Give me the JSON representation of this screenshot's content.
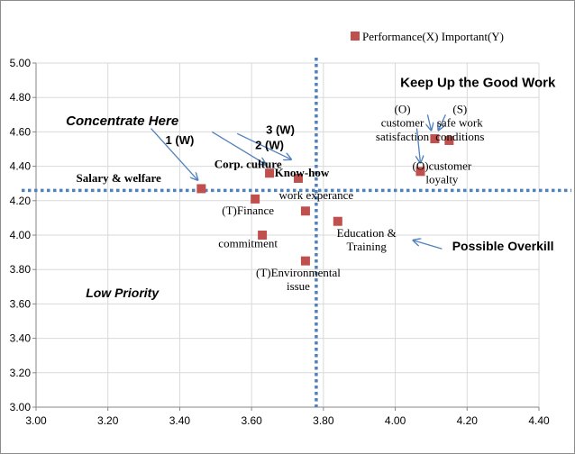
{
  "chart_data": {
    "type": "scatter",
    "xlim": [
      3.0,
      4.4
    ],
    "ylim": [
      3.0,
      5.0
    ],
    "x_ticks": [
      "3.00",
      "3.20",
      "3.40",
      "3.60",
      "3.80",
      "4.00",
      "4.20",
      "4.40"
    ],
    "y_ticks": [
      "3.00",
      "3.20",
      "3.40",
      "3.60",
      "3.80",
      "4.00",
      "4.20",
      "4.40",
      "4.60",
      "4.80",
      "5.00"
    ],
    "grid": true,
    "legend": {
      "label": "Performance(X) Important(Y)",
      "position": "top-right"
    },
    "marker_color": "#c0504d",
    "divider_color": "#4f81bd",
    "dividers": {
      "x": 3.78,
      "y": 4.26
    },
    "points": [
      {
        "x": 3.46,
        "y": 4.27
      },
      {
        "x": 3.65,
        "y": 4.36
      },
      {
        "x": 3.73,
        "y": 4.33
      },
      {
        "x": 3.61,
        "y": 4.21
      },
      {
        "x": 3.75,
        "y": 4.14
      },
      {
        "x": 3.63,
        "y": 4.0
      },
      {
        "x": 3.84,
        "y": 4.08
      },
      {
        "x": 3.75,
        "y": 3.85
      },
      {
        "x": 4.11,
        "y": 4.56
      },
      {
        "x": 4.15,
        "y": 4.55
      },
      {
        "x": 4.07,
        "y": 4.37
      }
    ],
    "point_labels": [
      {
        "text": "Salary  & welfare",
        "x": 3.23,
        "y": 4.31,
        "bold": true
      },
      {
        "text": "Corp. culture",
        "x": 3.59,
        "y": 4.39,
        "bold": true
      },
      {
        "text": "Know-how",
        "x": 3.74,
        "y": 4.34,
        "bold": true
      },
      {
        "text": "work experance",
        "x": 3.78,
        "y": 4.21
      },
      {
        "text": "(T)Finance",
        "x": 3.59,
        "y": 4.12
      },
      {
        "text": "commitment",
        "x": 3.59,
        "y": 3.93
      },
      {
        "text": "Education &",
        "x": 3.92,
        "y": 3.99
      },
      {
        "text": "Training",
        "x": 3.92,
        "y": 3.91
      },
      {
        "text": "(T)Environmental",
        "x": 3.73,
        "y": 3.76
      },
      {
        "text": "issue",
        "x": 3.73,
        "y": 3.68
      },
      {
        "text": "(O)",
        "x": 4.02,
        "y": 4.71
      },
      {
        "text": "customer",
        "x": 4.02,
        "y": 4.63
      },
      {
        "text": "satisfaction",
        "x": 4.02,
        "y": 4.55
      },
      {
        "text": "(S)",
        "x": 4.18,
        "y": 4.71
      },
      {
        "text": "safe work",
        "x": 4.18,
        "y": 4.63
      },
      {
        "text": "conditions",
        "x": 4.18,
        "y": 4.55
      },
      {
        "text": "(O)customer",
        "x": 4.13,
        "y": 4.38
      },
      {
        "text": "loyalty",
        "x": 4.13,
        "y": 4.3
      }
    ],
    "annotations": [
      {
        "text": "Concentrate Here",
        "x": 3.24,
        "y": 4.64,
        "size": 15,
        "italic": true
      },
      {
        "text": "Keep Up the Good Work",
        "x": 4.23,
        "y": 4.86,
        "size": 15,
        "italic": false
      },
      {
        "text": "Possible Overkill",
        "x": 4.3,
        "y": 3.91,
        "size": 14,
        "italic": false
      },
      {
        "text": "Low Priority",
        "x": 3.24,
        "y": 3.64,
        "size": 14,
        "italic": true
      }
    ],
    "callouts": [
      {
        "text": "1 (W)",
        "x": 3.4,
        "y": 4.53
      },
      {
        "text": "2 (W)",
        "x": 3.65,
        "y": 4.5
      },
      {
        "text": "3 (W)",
        "x": 3.68,
        "y": 4.59
      }
    ],
    "arrows": [
      {
        "from": [
          3.32,
          4.62
        ],
        "to": [
          3.45,
          4.32
        ]
      },
      {
        "from": [
          3.49,
          4.6
        ],
        "to": [
          3.64,
          4.41
        ]
      },
      {
        "from": [
          3.56,
          4.59
        ],
        "to": [
          3.71,
          4.44
        ]
      },
      {
        "from": [
          4.06,
          4.62
        ],
        "to": [
          4.07,
          4.42
        ]
      },
      {
        "from": [
          4.09,
          4.7
        ],
        "to": [
          4.1,
          4.61
        ]
      },
      {
        "from": [
          4.14,
          4.7
        ],
        "to": [
          4.12,
          4.61
        ]
      },
      {
        "from": [
          4.13,
          3.92
        ],
        "to": [
          4.05,
          3.97
        ]
      }
    ]
  }
}
